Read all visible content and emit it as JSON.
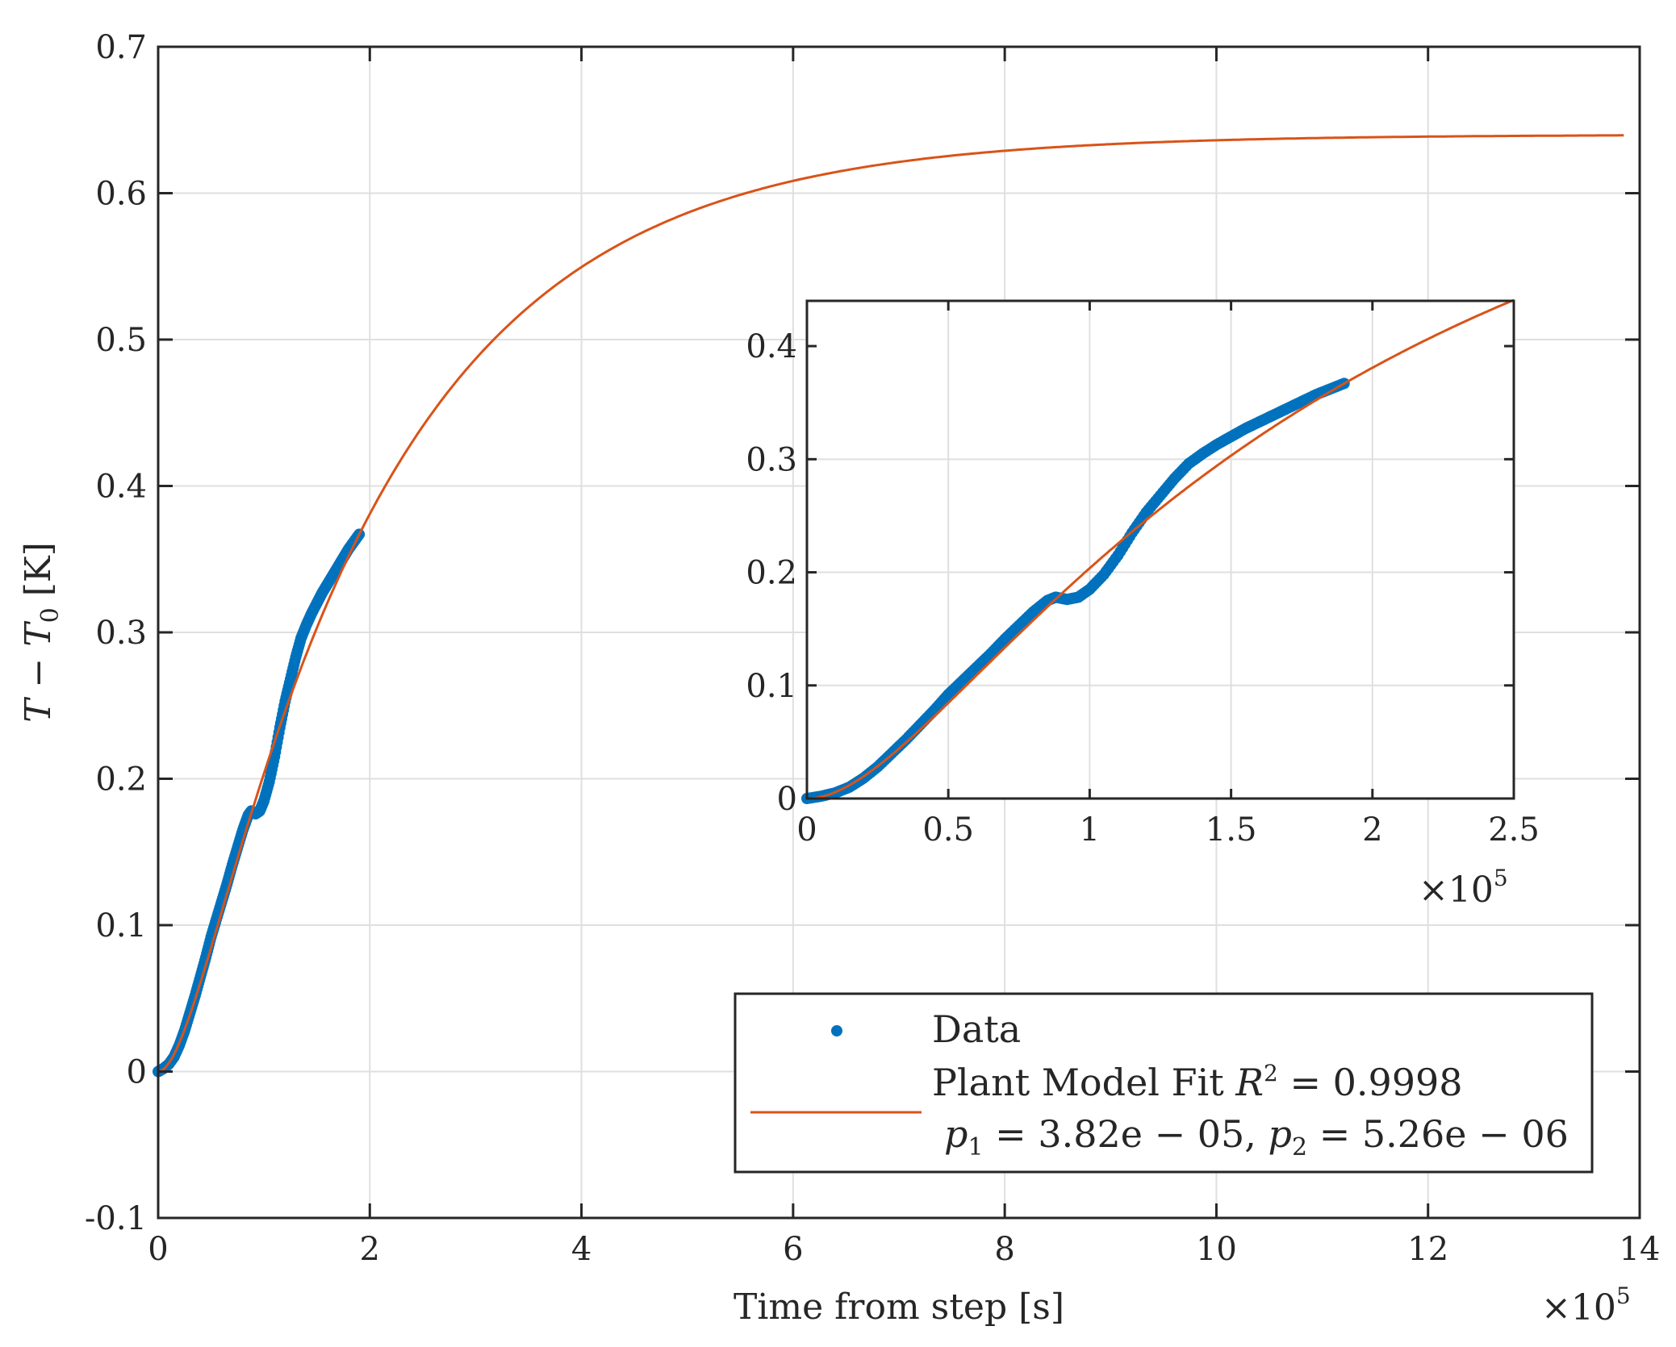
{
  "colors": {
    "data": "#0072BD",
    "fit": "#D95319",
    "grid": "#DFDFDF",
    "axis": "#262626"
  },
  "chart_data": [
    {
      "type": "scatter+line",
      "role": "main",
      "xlabel": "Time from step [s]",
      "ylabel_parts": [
        "T",
        " − ",
        "T",
        "0",
        " [K]"
      ],
      "x_exponent_label": "×10",
      "x_exponent_power": "5",
      "x_scale": 100000,
      "xlim": [
        0,
        1400000
      ],
      "ylim": [
        -0.1,
        0.7
      ],
      "x_ticks": [
        0,
        200000,
        400000,
        600000,
        800000,
        1000000,
        1200000,
        1400000
      ],
      "x_tick_labels": [
        "0",
        "2",
        "4",
        "6",
        "8",
        "10",
        "12",
        "14"
      ],
      "y_ticks": [
        -0.1,
        0,
        0.1,
        0.2,
        0.3,
        0.4,
        0.5,
        0.6,
        0.7
      ],
      "y_tick_labels": [
        "-0.1",
        "0",
        "0.1",
        "0.2",
        "0.3",
        "0.4",
        "0.5",
        "0.6",
        "0.7"
      ],
      "grid": true,
      "series": [
        {
          "name": "Data",
          "kind": "scatter",
          "x": [
            0,
            5000,
            10000,
            15000,
            20000,
            25000,
            30000,
            35000,
            40000,
            45000,
            50000,
            55000,
            60000,
            65000,
            70000,
            75000,
            80000,
            85000,
            88000,
            92000,
            96000,
            100000,
            105000,
            110000,
            115000,
            120000,
            125000,
            130000,
            135000,
            140000,
            145000,
            150000,
            155000,
            160000,
            165000,
            170000,
            175000,
            180000,
            185000,
            190000
          ],
          "y": [
            0,
            0.002,
            0.005,
            0.01,
            0.018,
            0.028,
            0.04,
            0.052,
            0.065,
            0.078,
            0.092,
            0.104,
            0.116,
            0.128,
            0.141,
            0.153,
            0.165,
            0.175,
            0.178,
            0.176,
            0.178,
            0.185,
            0.198,
            0.215,
            0.235,
            0.253,
            0.268,
            0.283,
            0.296,
            0.305,
            0.313,
            0.32,
            0.327,
            0.333,
            0.339,
            0.345,
            0.351,
            0.357,
            0.362,
            0.367
          ]
        },
        {
          "name": "Plant Model Fit",
          "kind": "line",
          "model": "second-order step response",
          "p1": 3.82e-05,
          "p2": 5.26e-06,
          "final_value": 0.64,
          "x_range": [
            0,
            1385000
          ]
        }
      ],
      "legend": {
        "placement": "bottom-right",
        "entries": [
          {
            "label": "Data"
          },
          {
            "label_line1": "Plant Model Fit ",
            "r2_symbol": "R",
            "r2_power": "2",
            "r2_value": " = 0.9998",
            "p1_symbol": "p",
            "p1_sub": "1",
            "p1_value": " = 3.82e − 05, ",
            "p2_symbol": "p",
            "p2_sub": "2",
            "p2_value": " = 5.26e − 06"
          }
        ]
      }
    },
    {
      "type": "scatter+line",
      "role": "inset",
      "placement": "upper-right inside main axes",
      "x_exponent_label": "×10",
      "x_exponent_power": "5",
      "xlim": [
        0,
        250000
      ],
      "ylim": [
        0,
        0.44
      ],
      "x_ticks": [
        0,
        50000,
        100000,
        150000,
        200000,
        250000
      ],
      "x_tick_labels": [
        "0",
        "0.5",
        "1",
        "1.5",
        "2",
        "2.5"
      ],
      "y_ticks": [
        0,
        0.1,
        0.2,
        0.3,
        0.4
      ],
      "y_tick_labels": [
        "0",
        "0.1",
        "0.2",
        "0.3",
        "0.4"
      ],
      "grid": true
    }
  ]
}
